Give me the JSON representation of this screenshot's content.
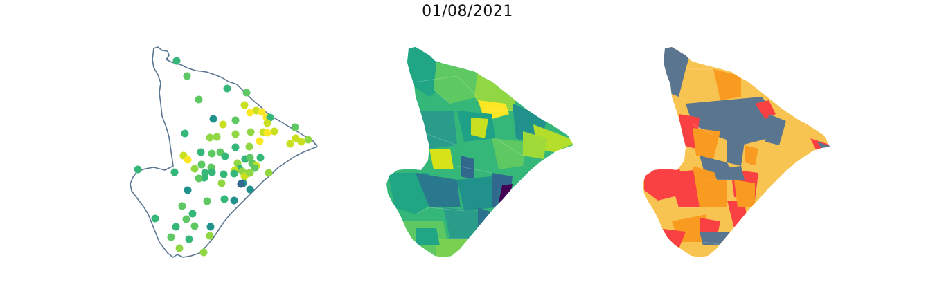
{
  "figure": {
    "title": "01/08/2021"
  },
  "palettes": {
    "viridis": [
      "#440154",
      "#31688e",
      "#21918c",
      "#35b779",
      "#5ec962",
      "#90d743",
      "#c8e020",
      "#fde725"
    ],
    "categorical": [
      "#5a7590",
      "#f8c451",
      "#f99b20",
      "#f94144"
    ],
    "outline": "#5a7590"
  },
  "maps": [
    {
      "name": "stations-points-map",
      "style": "outline-with-points"
    },
    {
      "name": "municipalities-continuous-map",
      "style": "choropleth-viridis"
    },
    {
      "name": "municipalities-class-map",
      "style": "choropleth-categorical"
    }
  ]
}
